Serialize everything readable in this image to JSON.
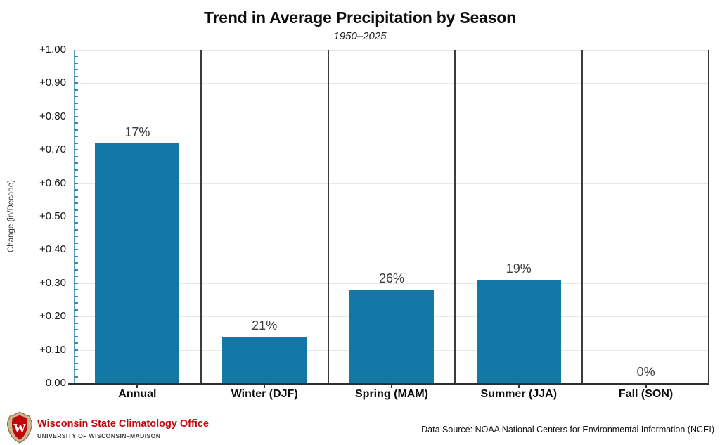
{
  "chart_data": {
    "type": "bar",
    "title": "Trend in Average Precipitation by Season",
    "subtitle": "1950–2025",
    "ylabel": "Change (in/Decade)",
    "categories": [
      "Annual",
      "Winter (DJF)",
      "Spring (MAM)",
      "Summer (JJA)",
      "Fall (SON)"
    ],
    "values": [
      0.72,
      0.14,
      0.28,
      0.31,
      0.0
    ],
    "bar_labels": [
      "17%",
      "21%",
      "26%",
      "19%",
      "0%"
    ],
    "ylim": [
      0,
      1.0
    ],
    "ytick_step": 0.1,
    "minor_tick_step": 0.02,
    "ytick_labels": [
      "0.00",
      "+0.10",
      "+0.20",
      "+0.30",
      "+0.40",
      "+0.50",
      "+0.60",
      "+0.70",
      "+0.80",
      "+0.90",
      "+1.00"
    ],
    "grid": true,
    "legend": "none",
    "panel_separators": true,
    "colors": {
      "bar": "#1478a6",
      "axis_line": "#5d9cba",
      "tick": "#3e88ac",
      "gridline": "#e8e8e8",
      "separator": "#3b3b3b",
      "baseline": "#2e2e2e",
      "value_label": "#3c3c3c"
    }
  },
  "footer": {
    "org_name": "Wisconsin State Climatology Office",
    "org_subname": "UNIVERSITY OF WISCONSIN–MADISON",
    "org_color": "#c5050c",
    "logo": "uw-crest-icon",
    "data_source": "Data Source: NOAA National Centers for Environmental Information (NCEI)"
  }
}
